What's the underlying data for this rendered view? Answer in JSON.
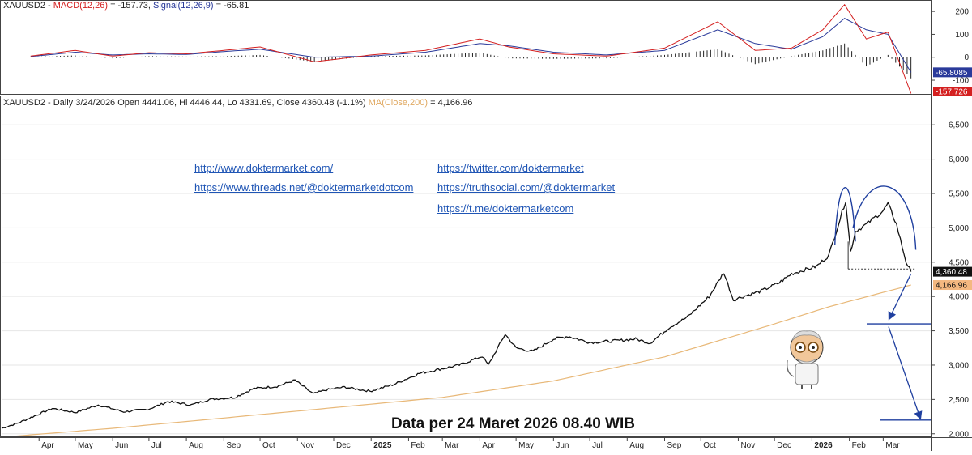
{
  "macd_header": {
    "symbol": "XAUUSD2",
    "macd_label": "MACD(12,26)",
    "macd_value": "= -157.73,",
    "signal_label": "Signal(12,26,9)",
    "signal_value": "= -65.81"
  },
  "price_header": {
    "text": "XAUUSD2 - Daily 3/24/2026 Open 4441.06, Hi 4446.44, Lo 4331.69, Close 4360.48 (-1.1%)",
    "ma_label": "MA(Close,200)",
    "ma_value": "= 4,166.96"
  },
  "links": {
    "site": "http://www.doktermarket.com/",
    "threads": "https://www.threads.net/@doktermarketdotcom",
    "twitter": "https://twitter.com/doktermarket",
    "truthsocial": "https://truthsocial.com/@doktermarket",
    "telegram": "https://t.me/doktermarketcom"
  },
  "caption": "Data per 24 Maret 2026 08.40 WIB",
  "colors": {
    "price": "#111111",
    "ma": "#e8b878",
    "macd": "#d42020",
    "signal": "#2a3a9a",
    "histogram": "#222222",
    "annotation": "#1f3f9f",
    "link": "#1f55b5"
  },
  "chart_data": [
    {
      "type": "line",
      "panel": "MACD",
      "ylim": [
        -160,
        250
      ],
      "yticks": [
        200,
        100,
        0,
        -100
      ],
      "ytick_labels": [
        "200",
        "100",
        "0",
        "-100"
      ],
      "series": [
        {
          "name": "MACD(12,26)",
          "x": [
            "2024-03-25",
            "2024-05-01",
            "2024-06-01",
            "2024-07-01",
            "2024-08-01",
            "2024-09-01",
            "2024-10-01",
            "2024-11-15",
            "2025-01-01",
            "2025-02-15",
            "2025-04-01",
            "2025-04-25",
            "2025-06-01",
            "2025-07-15",
            "2025-09-01",
            "2025-10-15",
            "2025-11-15",
            "2025-12-15",
            "2026-01-10",
            "2026-01-28",
            "2026-02-15",
            "2026-03-05",
            "2026-03-24"
          ],
          "values": [
            5,
            30,
            5,
            20,
            15,
            30,
            45,
            -20,
            10,
            30,
            80,
            45,
            15,
            5,
            40,
            155,
            30,
            40,
            120,
            230,
            80,
            110,
            -157.73
          ]
        },
        {
          "name": "Signal(12,26,9)",
          "x": [
            "2024-03-25",
            "2024-05-01",
            "2024-06-01",
            "2024-07-01",
            "2024-08-01",
            "2024-09-01",
            "2024-10-01",
            "2024-11-15",
            "2025-01-01",
            "2025-02-15",
            "2025-04-01",
            "2025-04-25",
            "2025-06-01",
            "2025-07-15",
            "2025-09-01",
            "2025-10-15",
            "2025-11-15",
            "2025-12-15",
            "2026-01-10",
            "2026-01-28",
            "2026-02-15",
            "2026-03-05",
            "2026-03-24"
          ],
          "values": [
            3,
            22,
            10,
            15,
            12,
            25,
            35,
            0,
            5,
            22,
            60,
            50,
            22,
            10,
            30,
            120,
            60,
            35,
            90,
            170,
            120,
            100,
            -65.81
          ]
        }
      ],
      "value_tags": [
        "-65.8085",
        "-157.726"
      ]
    },
    {
      "type": "line",
      "panel": "Price",
      "title": "XAUUSD2 - Daily",
      "ylim": [
        1950,
        6750
      ],
      "yticks": [
        2000,
        2500,
        3000,
        3500,
        4000,
        4500,
        5000,
        5500,
        6000,
        6500
      ],
      "ytick_labels": [
        "2,000",
        "2,500",
        "3,000",
        "3,500",
        "4,000",
        "4,500",
        "5,000",
        "5,500",
        "6,000",
        "6,500"
      ],
      "x_labels": [
        "Apr",
        "May",
        "Jun",
        "Jul",
        "Aug",
        "Sep",
        "Oct",
        "Nov",
        "Dec",
        "2025",
        "Feb",
        "Mar",
        "Apr",
        "May",
        "Jun",
        "Jul",
        "Aug",
        "Sep",
        "Oct",
        "Nov",
        "Dec",
        "2026",
        "Feb",
        "Mar"
      ],
      "x_label_dates": [
        "2024-04-01",
        "2024-05-01",
        "2024-06-01",
        "2024-07-01",
        "2024-08-01",
        "2024-09-01",
        "2024-10-01",
        "2024-11-01",
        "2024-12-01",
        "2025-01-01",
        "2025-02-01",
        "2025-03-01",
        "2025-04-01",
        "2025-05-01",
        "2025-06-01",
        "2025-07-01",
        "2025-08-01",
        "2025-09-01",
        "2025-10-01",
        "2025-11-01",
        "2025-12-01",
        "2026-01-01",
        "2026-02-01",
        "2026-03-01"
      ],
      "series": [
        {
          "name": "XAUUSD2",
          "x": [
            "2024-03-01",
            "2024-03-15",
            "2024-04-12",
            "2024-05-01",
            "2024-05-20",
            "2024-06-10",
            "2024-07-01",
            "2024-07-17",
            "2024-08-05",
            "2024-08-20",
            "2024-09-10",
            "2024-09-26",
            "2024-10-15",
            "2024-10-30",
            "2024-11-14",
            "2024-11-25",
            "2024-12-10",
            "2024-12-31",
            "2025-01-20",
            "2025-02-10",
            "2025-02-24",
            "2025-03-15",
            "2025-04-03",
            "2025-04-08",
            "2025-04-22",
            "2025-05-01",
            "2025-05-15",
            "2025-06-01",
            "2025-06-13",
            "2025-07-01",
            "2025-07-20",
            "2025-08-08",
            "2025-08-20",
            "2025-09-05",
            "2025-09-20",
            "2025-10-08",
            "2025-10-20",
            "2025-10-28",
            "2025-11-05",
            "2025-11-20",
            "2025-12-05",
            "2025-12-15",
            "2026-01-05",
            "2026-01-15",
            "2026-01-29",
            "2026-02-02",
            "2026-02-06",
            "2026-02-15",
            "2026-03-01",
            "2026-03-05",
            "2026-03-12",
            "2026-03-20",
            "2026-03-24"
          ],
          "values": [
            2080,
            2160,
            2370,
            2310,
            2420,
            2320,
            2360,
            2470,
            2420,
            2500,
            2530,
            2660,
            2690,
            2780,
            2580,
            2640,
            2680,
            2620,
            2720,
            2880,
            2930,
            3000,
            3130,
            3000,
            3450,
            3250,
            3200,
            3380,
            3420,
            3330,
            3350,
            3380,
            3320,
            3550,
            3700,
            4000,
            4350,
            3950,
            4000,
            4080,
            4200,
            4330,
            4440,
            4600,
            5400,
            4650,
            4950,
            5050,
            5250,
            5350,
            5050,
            4500,
            4360.48
          ]
        },
        {
          "name": "MA(Close,200)",
          "x": [
            "2024-03-01",
            "2024-06-01",
            "2024-09-01",
            "2024-12-01",
            "2025-03-01",
            "2025-06-01",
            "2025-09-01",
            "2025-12-01",
            "2026-01-15",
            "2026-03-24"
          ],
          "values": [
            1950,
            2080,
            2230,
            2380,
            2530,
            2770,
            3120,
            3600,
            3850,
            4166.96
          ]
        }
      ],
      "value_tags": [
        "4,360.48",
        "4,166.96"
      ],
      "annotations": [
        "left peak arc",
        "rounded top arc",
        "neckline",
        "projection arrows",
        "target levels"
      ]
    }
  ]
}
